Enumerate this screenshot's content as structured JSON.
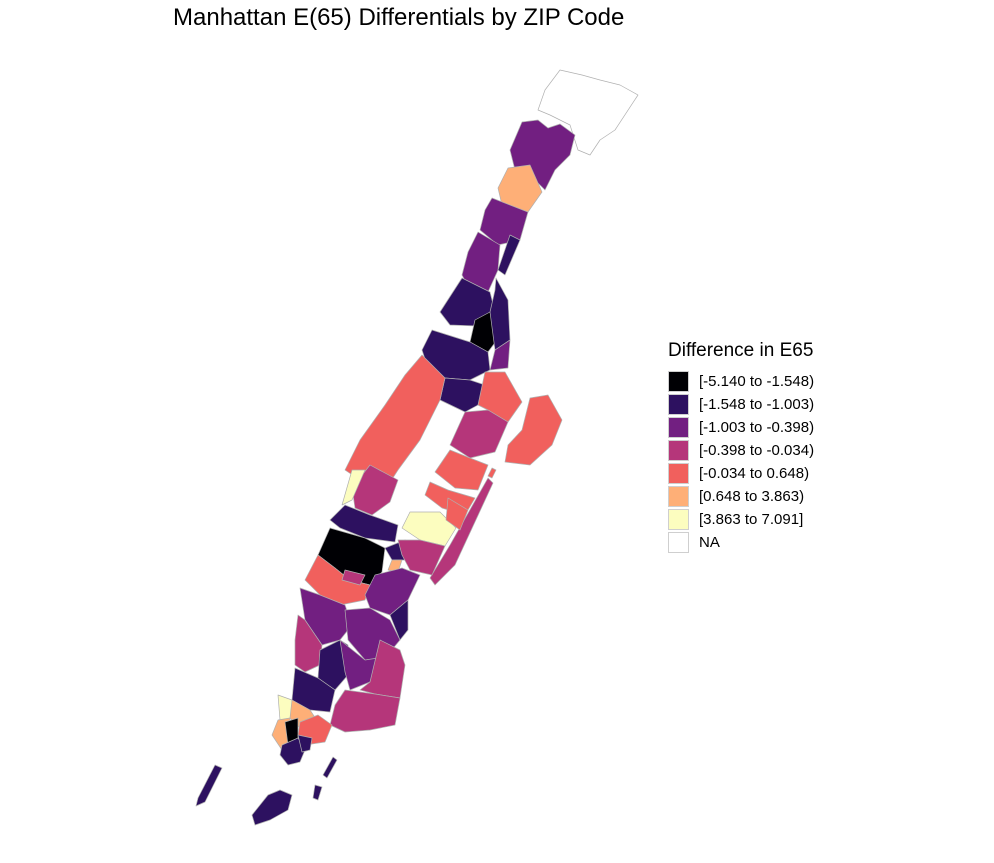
{
  "title": "Manhattan E(65) Differentials by ZIP Code",
  "legend": {
    "title": "Difference in E65",
    "items": [
      {
        "label": "[-5.140 to -1.548)",
        "color": "#000004"
      },
      {
        "label": "[-1.548 to -1.003)",
        "color": "#2d1160"
      },
      {
        "label": "[-1.003 to -0.398)",
        "color": "#721f81"
      },
      {
        "label": "[-0.398 to -0.034)",
        "color": "#b5367a"
      },
      {
        "label": "[-0.034 to 0.648)",
        "color": "#f1605d"
      },
      {
        "label": "[0.648 to 3.863)",
        "color": "#feaf77"
      },
      {
        "label": "[3.863 to 7.091]",
        "color": "#fcfdbf"
      },
      {
        "label": "NA",
        "color": "#ffffff"
      }
    ]
  }
}
